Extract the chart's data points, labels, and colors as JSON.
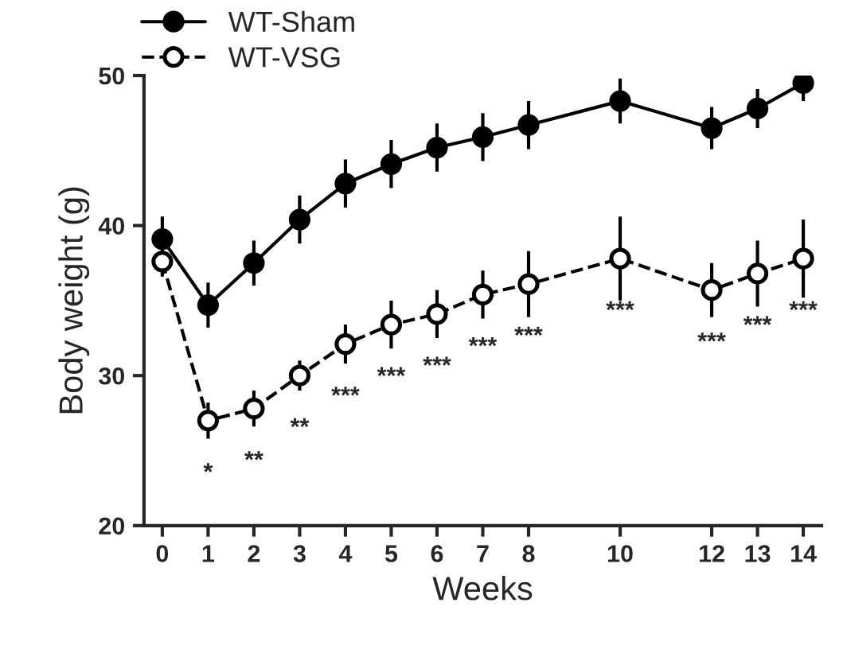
{
  "chart_data": {
    "type": "line",
    "xlabel": "Weeks",
    "ylabel": "Body weight (g)",
    "x": [
      0,
      1,
      2,
      3,
      4,
      5,
      6,
      7,
      8,
      10,
      12,
      13,
      14
    ],
    "series": [
      {
        "name": "WT-Sham",
        "color": "#000000",
        "marker": "circle",
        "line_style": "solid",
        "values": [
          39.1,
          34.7,
          37.5,
          40.4,
          42.8,
          44.1,
          45.2,
          45.9,
          46.7,
          48.3,
          46.5,
          47.8,
          49.5
        ],
        "errors": [
          1.5,
          1.5,
          1.5,
          1.6,
          1.6,
          1.6,
          1.6,
          1.6,
          1.6,
          1.5,
          1.4,
          1.3,
          [
            48.3,
            50
          ]
        ]
      },
      {
        "name": "WT-VSG",
        "color": "#000000",
        "marker": "circle",
        "line_style": "dashed",
        "values": [
          37.6,
          27.0,
          27.8,
          30.0,
          32.1,
          33.4,
          34.1,
          35.4,
          36.1,
          37.8,
          35.7,
          36.8,
          37.8
        ],
        "errors": [
          1.0,
          1.2,
          1.2,
          1.0,
          1.3,
          1.6,
          1.6,
          1.6,
          2.2,
          2.8,
          1.8,
          2.2,
          2.6
        ]
      }
    ],
    "annotations": [
      {
        "text": "*",
        "x": 1,
        "y": 27.0
      },
      {
        "text": "**",
        "x": 2,
        "y": 27.8
      },
      {
        "text": "**",
        "x": 3,
        "y": 30.0
      },
      {
        "text": "***",
        "x": 4,
        "y": 32.1
      },
      {
        "text": "***",
        "x": 5,
        "y": 33.4
      },
      {
        "text": "***",
        "x": 6,
        "y": 34.1
      },
      {
        "text": "***",
        "x": 7,
        "y": 35.4
      },
      {
        "text": "***",
        "x": 8,
        "y": 36.1
      },
      {
        "text": "***",
        "x": 10,
        "y": 37.8
      },
      {
        "text": "***",
        "x": 12,
        "y": 35.7
      },
      {
        "text": "***",
        "x": 13,
        "y": 36.8
      },
      {
        "text": "***",
        "x": 14,
        "y": 37.8
      }
    ],
    "xlim": [
      -0.4,
      14.4
    ],
    "xticks": [
      0,
      1,
      2,
      3,
      4,
      5,
      6,
      7,
      8,
      10,
      12,
      13,
      14
    ],
    "ylim": [
      20,
      50
    ],
    "yticks": [
      20,
      30,
      40,
      50
    ],
    "grid": false,
    "legend": "top left"
  }
}
